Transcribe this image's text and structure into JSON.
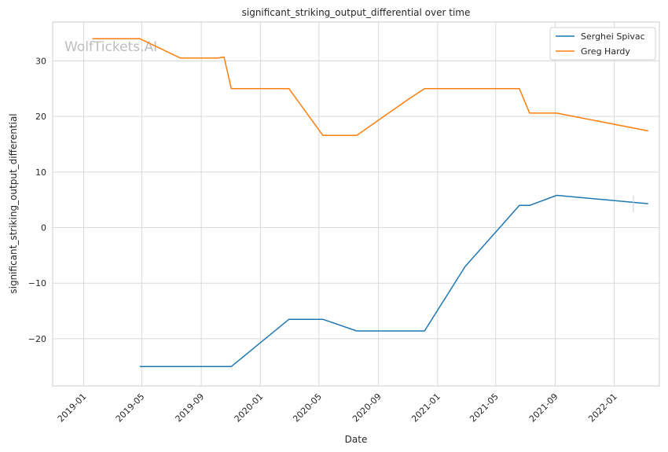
{
  "chart_data": {
    "type": "line",
    "title": "significant_striking_output_differential over time",
    "xlabel": "Date",
    "ylabel": "significant_striking_output_differential",
    "watermark": "WolfTickets.AI",
    "x_type": "date",
    "xlim": [
      "2018-10-29",
      "2022-04-04"
    ],
    "ylim": [
      -28.5,
      37
    ],
    "x_ticks": [
      "2019-01-01",
      "2019-05-01",
      "2019-09-01",
      "2020-01-01",
      "2020-05-01",
      "2020-09-01",
      "2021-01-01",
      "2021-05-01",
      "2021-09-01",
      "2022-01-01"
    ],
    "x_tick_labels": [
      "2019-01",
      "2019-05",
      "2019-09",
      "2020-01",
      "2020-05",
      "2020-09",
      "2021-01",
      "2021-05",
      "2021-09",
      "2022-01"
    ],
    "y_ticks": [
      -20,
      -10,
      0,
      10,
      20,
      30
    ],
    "y_tick_labels": [
      "−20",
      "−10",
      "0",
      "10",
      "20",
      "30"
    ],
    "grid": true,
    "legend_position": "top-right",
    "series": [
      {
        "name": "Serghei Spivac",
        "color": "#1f77b4",
        "points": [
          [
            "2019-04-27",
            -25.0
          ],
          [
            "2019-11-02",
            -25.0
          ],
          [
            "2020-02-29",
            -16.5
          ],
          [
            "2020-05-09",
            -16.5
          ],
          [
            "2020-07-18",
            -18.6
          ],
          [
            "2020-12-05",
            -18.6
          ],
          [
            "2021-02-27",
            -7.0
          ],
          [
            "2021-06-19",
            4.0
          ],
          [
            "2021-07-10",
            4.0
          ],
          [
            "2021-09-04",
            5.8
          ],
          [
            "2022-03-12",
            4.3
          ]
        ]
      },
      {
        "name": "Greg Hardy",
        "color": "#ff7f0e",
        "points": [
          [
            "2019-01-19",
            34.0
          ],
          [
            "2019-04-27",
            34.0
          ],
          [
            "2019-07-20",
            30.5
          ],
          [
            "2019-10-05",
            30.5
          ],
          [
            "2019-10-18",
            30.7
          ],
          [
            "2019-11-02",
            25.0
          ],
          [
            "2020-02-29",
            25.0
          ],
          [
            "2020-05-09",
            16.6
          ],
          [
            "2020-07-18",
            16.6
          ],
          [
            "2020-10-31",
            23.0
          ],
          [
            "2020-12-05",
            25.0
          ],
          [
            "2021-06-19",
            25.0
          ],
          [
            "2021-07-10",
            20.6
          ],
          [
            "2021-09-04",
            20.6
          ],
          [
            "2022-03-12",
            17.4
          ]
        ]
      }
    ]
  }
}
